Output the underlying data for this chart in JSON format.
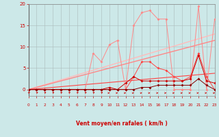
{
  "bg_color": "#cce8e8",
  "grid_color": "#aabbbb",
  "xlim": [
    0,
    23
  ],
  "ylim": [
    0,
    20
  ],
  "y_ticks": [
    0,
    5,
    10,
    15,
    20
  ],
  "x_ticks": [
    0,
    1,
    2,
    3,
    4,
    5,
    6,
    7,
    8,
    9,
    10,
    11,
    12,
    13,
    14,
    15,
    16,
    17,
    18,
    19,
    20,
    21,
    22,
    23
  ],
  "x_label": "Vent moyen/en rafales ( km/h )",
  "color_lightest": "#ffbbbb",
  "color_light": "#ff8888",
  "color_mid": "#ff4444",
  "color_dark": "#cc0000",
  "color_darkest": "#880000",
  "straight1_end_y": 13.0,
  "straight2_end_y": 11.5,
  "straight3_end_y": 3.8,
  "curve1_y": [
    0,
    0,
    0,
    0,
    0,
    0,
    0,
    0,
    8.5,
    6.5,
    10.5,
    11.5,
    0,
    15,
    18,
    18.5,
    16.5,
    16.5,
    0,
    0,
    0,
    19.5,
    0,
    16.5
  ],
  "curve2_y": [
    0,
    0,
    0,
    0,
    0,
    0,
    0,
    0,
    0,
    0,
    0,
    0,
    0,
    3.0,
    6.5,
    6.5,
    5.0,
    4.5,
    3.0,
    2.0,
    3.0,
    8.5,
    3.0,
    0
  ],
  "curve3_y": [
    0,
    0,
    0,
    0,
    0,
    0,
    0,
    0,
    0,
    0,
    0.5,
    0,
    1.5,
    3.0,
    2.0,
    2.0,
    2.0,
    2.0,
    2.0,
    2.0,
    2.5,
    8.0,
    2.0,
    1.5
  ],
  "curve4_y": [
    0,
    0,
    0,
    0,
    0,
    0,
    0,
    0,
    0,
    0,
    0,
    0,
    0,
    0,
    0.5,
    0.5,
    1.0,
    1.0,
    1.0,
    1.0,
    1.0,
    2.5,
    1.0,
    0
  ],
  "arrow_angles_deg": [
    45,
    45,
    45,
    45,
    45,
    45,
    45,
    45,
    45,
    45,
    10,
    10,
    10,
    10,
    10,
    10,
    10,
    10,
    10,
    10,
    10,
    10,
    10,
    10
  ]
}
